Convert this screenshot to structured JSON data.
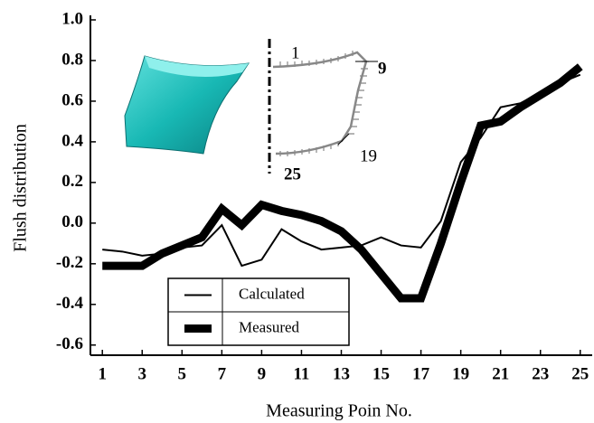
{
  "chart_data": {
    "type": "line",
    "x_label": "Measuring Poin No.",
    "y_label": "Flush distribution",
    "x": [
      1,
      2,
      3,
      4,
      5,
      6,
      7,
      8,
      9,
      10,
      11,
      12,
      13,
      14,
      15,
      16,
      17,
      18,
      19,
      20,
      21,
      22,
      23,
      24,
      25
    ],
    "series": [
      {
        "name": "Calculated",
        "color": "#000000",
        "width": 2,
        "values": [
          -0.13,
          -0.14,
          -0.16,
          -0.15,
          -0.12,
          -0.11,
          -0.01,
          -0.21,
          -0.18,
          -0.03,
          -0.09,
          -0.13,
          -0.12,
          -0.11,
          -0.07,
          -0.11,
          -0.12,
          0.01,
          0.3,
          0.42,
          0.57,
          0.59,
          0.64,
          0.69,
          0.73
        ]
      },
      {
        "name": "Measured",
        "color": "#000000",
        "width": 9,
        "values": [
          -0.21,
          -0.21,
          -0.21,
          -0.15,
          -0.11,
          -0.07,
          0.07,
          -0.01,
          0.09,
          0.06,
          0.04,
          0.01,
          -0.04,
          -0.13,
          -0.25,
          -0.37,
          -0.37,
          -0.1,
          0.2,
          0.48,
          0.5,
          0.57,
          0.63,
          0.69,
          0.77
        ]
      }
    ],
    "xlim": [
      0.4,
      25.6
    ],
    "xticks": [
      1,
      3,
      5,
      7,
      9,
      11,
      13,
      15,
      17,
      19,
      21,
      23,
      25
    ],
    "ylim": [
      -0.65,
      1.0
    ],
    "yticks": [
      -0.6,
      -0.4,
      -0.2,
      {
        "value": 0,
        "label": "0.0"
      },
      0.2,
      0.4,
      0.6,
      0.8,
      {
        "value": 1,
        "label": "1.0"
      }
    ],
    "legend": "lower-left",
    "annotations": [
      "1",
      "9",
      "19",
      "25"
    ]
  }
}
